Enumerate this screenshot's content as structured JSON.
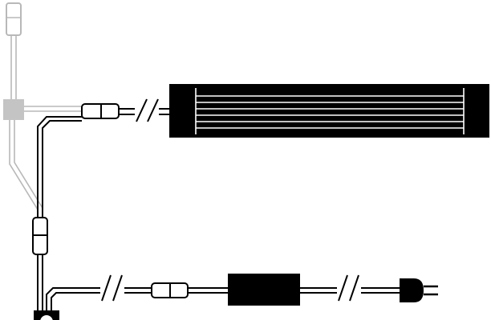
{
  "diagram": {
    "kind": "wiring-diagram",
    "colors": {
      "background": "#ffffff",
      "wire": "#000000",
      "wire_faded": "#b8b8b8",
      "junction_faded": "#c4c4c4",
      "fixture_body": "#000000",
      "fixture_stripes": "#ffffff",
      "connector_fill": "#ffffff"
    },
    "components": [
      {
        "id": "faded-connector",
        "icon": "plug-connector-icon",
        "state": "faded"
      },
      {
        "id": "faded-junction",
        "icon": "junction-block-icon",
        "state": "faded"
      },
      {
        "id": "in-line-connector-upper",
        "icon": "inline-connector-icon"
      },
      {
        "id": "wire-break-upper",
        "icon": "wire-break-icon"
      },
      {
        "id": "light-fixture",
        "icon": "linear-light-fixture-icon",
        "stripe_count": 6
      },
      {
        "id": "in-line-connector-vertical",
        "icon": "inline-connector-icon"
      },
      {
        "id": "wire-break-lower-left",
        "icon": "wire-break-icon"
      },
      {
        "id": "in-line-connector-lower",
        "icon": "inline-connector-icon"
      },
      {
        "id": "power-supply",
        "icon": "power-transformer-icon"
      },
      {
        "id": "wire-break-lower-right",
        "icon": "wire-break-icon"
      },
      {
        "id": "wall-plug",
        "icon": "wall-plug-icon"
      },
      {
        "id": "power-hub",
        "icon": "power-hub-icon"
      }
    ]
  }
}
